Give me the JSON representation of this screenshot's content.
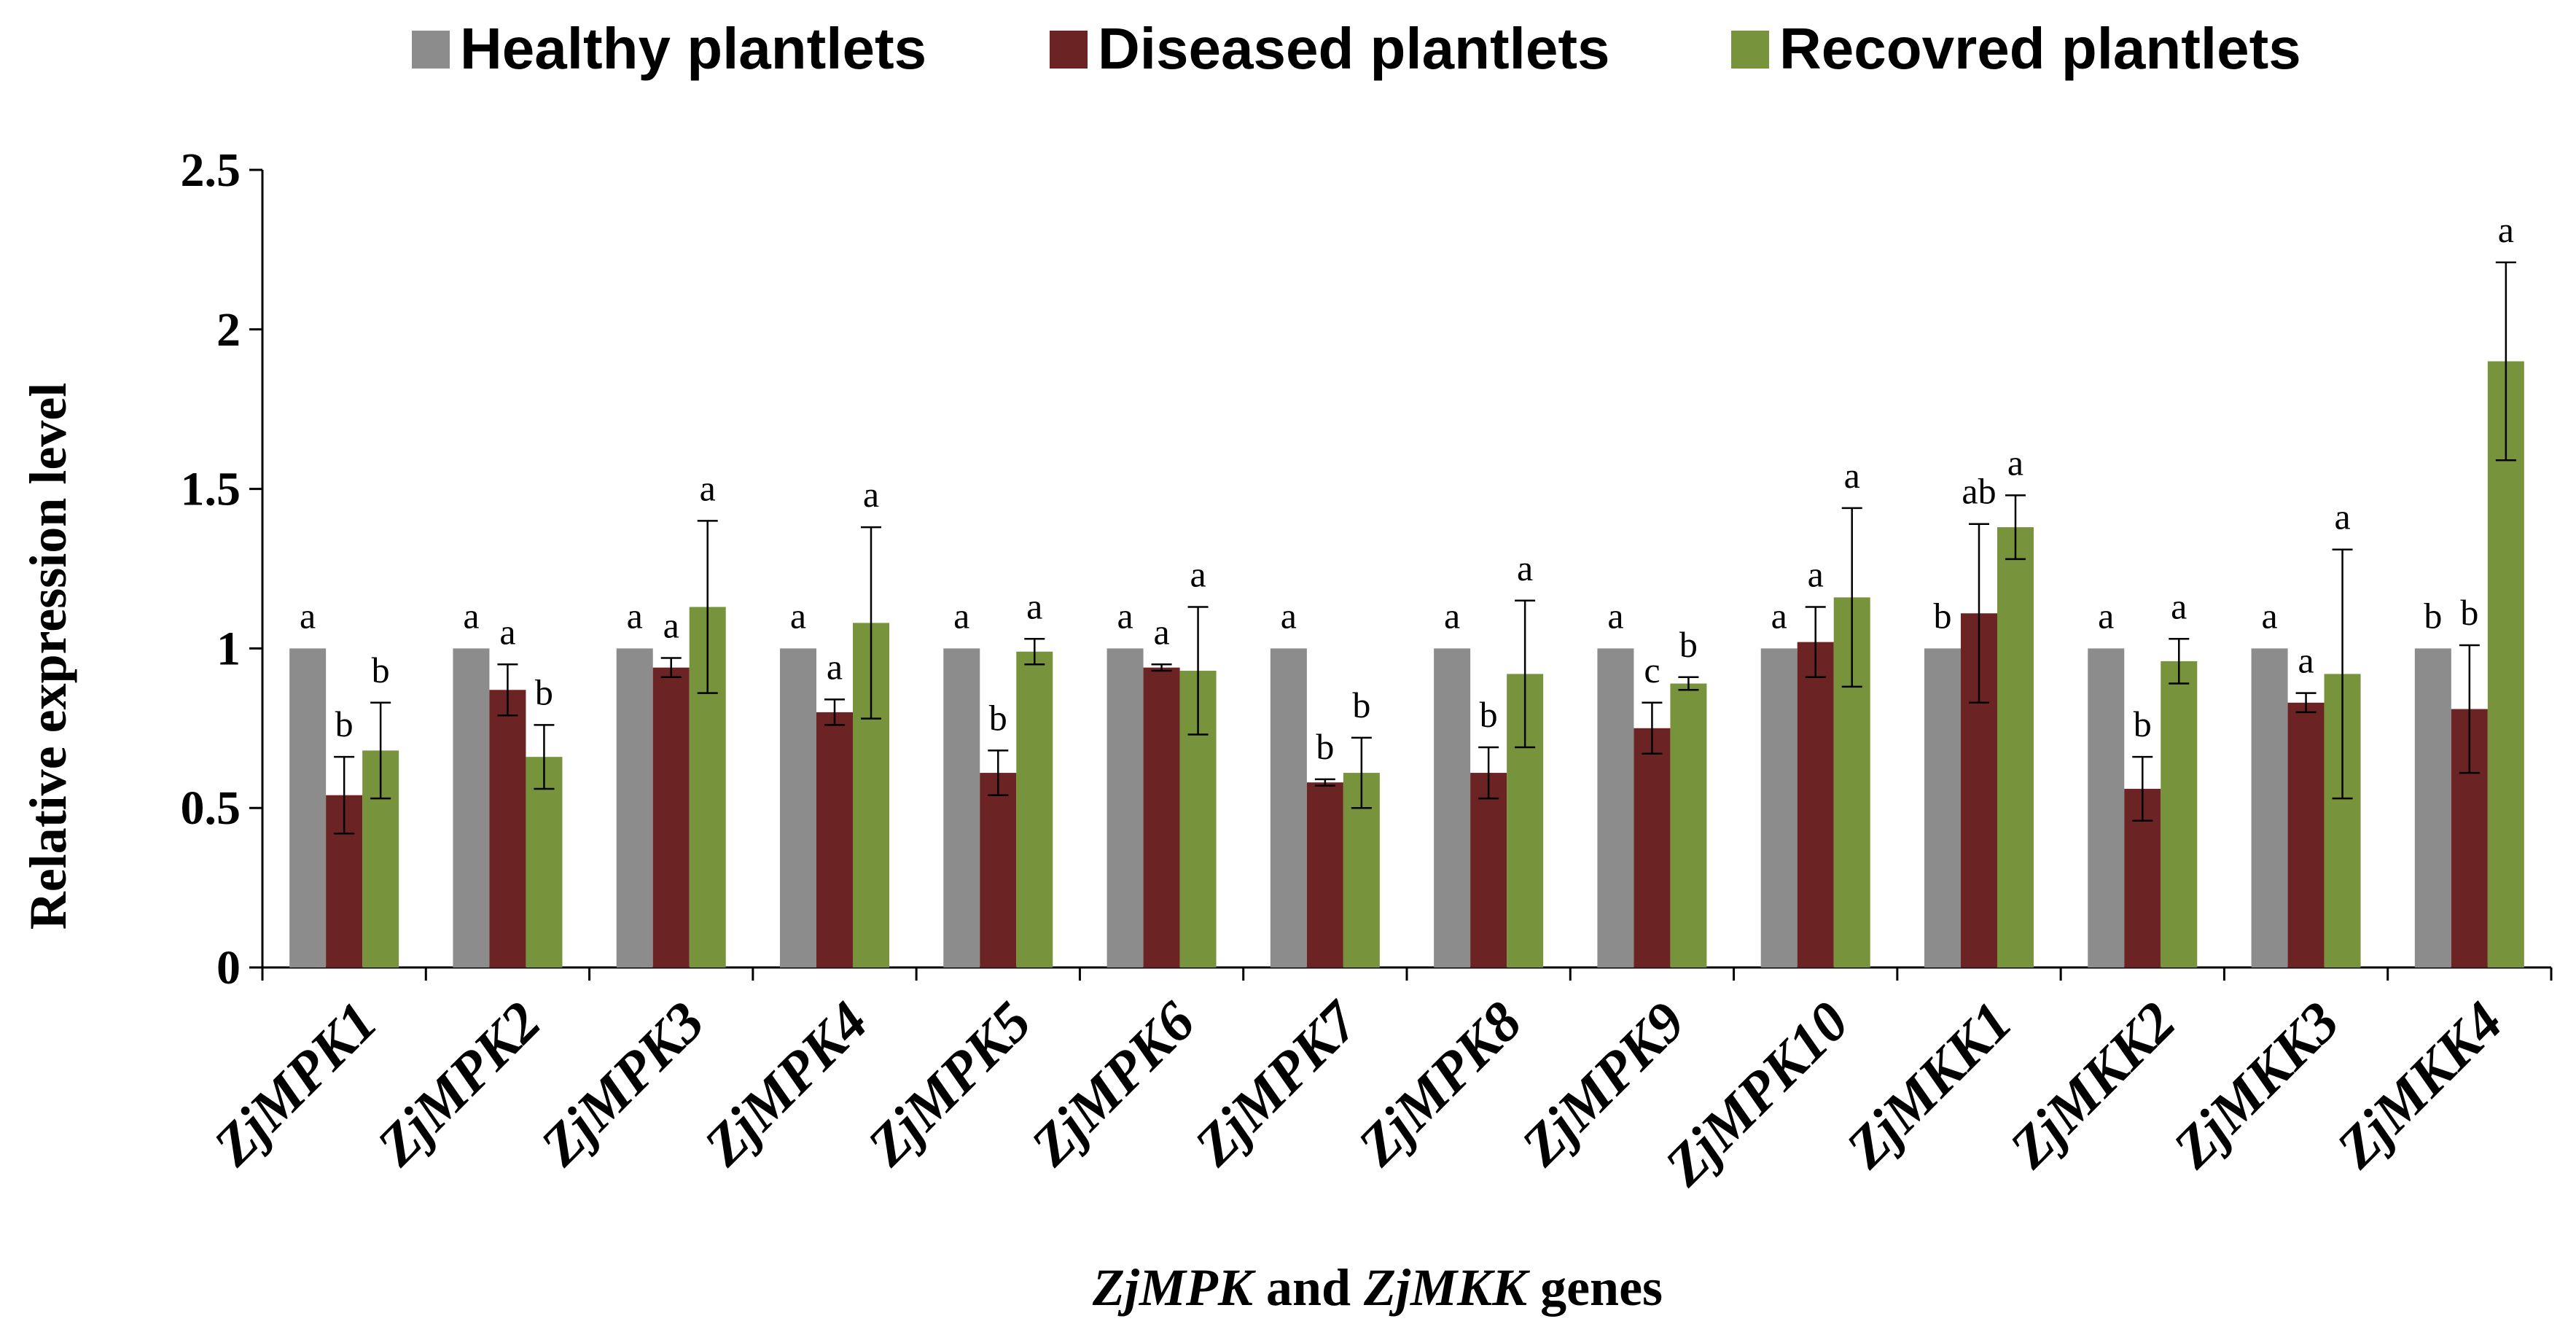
{
  "chart_data": {
    "type": "bar",
    "categories": [
      "ZjMPK1",
      "ZjMPK2",
      "ZjMPK3",
      "ZjMPK4",
      "ZjMPK5",
      "ZjMPK6",
      "ZjMPK7",
      "ZjMPK8",
      "ZjMPK9",
      "ZjMPK10",
      "ZjMKK1",
      "ZjMKK2",
      "ZjMKK3",
      "ZjMKK4"
    ],
    "series": [
      {
        "name": "Healthy plantlets",
        "color": "#8c8c8c",
        "values": [
          1,
          1,
          1,
          1,
          1,
          1,
          1,
          1,
          1,
          1,
          1,
          1,
          1,
          1
        ],
        "errors": [
          0,
          0,
          0,
          0,
          0,
          0,
          0,
          0,
          0,
          0,
          0,
          0,
          0,
          0
        ],
        "letters": [
          "a",
          "a",
          "a",
          "a",
          "a",
          "a",
          "a",
          "a",
          "a",
          "a",
          "b",
          "a",
          "a",
          "b"
        ]
      },
      {
        "name": "Diseased plantlets",
        "color": "#6b2323",
        "values": [
          0.54,
          0.87,
          0.94,
          0.8,
          0.61,
          0.94,
          0.58,
          0.61,
          0.75,
          1.02,
          1.11,
          0.56,
          0.83,
          0.81
        ],
        "errors": [
          0.12,
          0.08,
          0.03,
          0.04,
          0.07,
          0.01,
          0.01,
          0.08,
          0.08,
          0.11,
          0.28,
          0.1,
          0.03,
          0.2
        ],
        "letters": [
          "b",
          "a",
          "a",
          "a",
          "b",
          "a",
          "b",
          "b",
          "c",
          "a",
          "ab",
          "b",
          "a",
          "b"
        ]
      },
      {
        "name": "Recovred plantlets",
        "color": "#77933c",
        "values": [
          0.68,
          0.66,
          1.13,
          1.08,
          0.99,
          0.93,
          0.61,
          0.92,
          0.89,
          1.16,
          1.38,
          0.96,
          0.92,
          1.9
        ],
        "errors": [
          0.15,
          0.1,
          0.27,
          0.3,
          0.04,
          0.2,
          0.11,
          0.23,
          0.02,
          0.28,
          0.1,
          0.07,
          0.39,
          0.31
        ],
        "letters": [
          "b",
          "b",
          "a",
          "a",
          "a",
          "a",
          "b",
          "a",
          "b",
          "a",
          "a",
          "a",
          "a",
          "a"
        ]
      }
    ],
    "yticks": [
      "0",
      "0.5",
      "1",
      "1.5",
      "2",
      "2.5"
    ],
    "ylim": [
      0,
      2.5
    ],
    "ylabel": "Relative expression level",
    "xlabel_parts": [
      {
        "text": "ZjMPK",
        "italic": true
      },
      {
        "text": " and ",
        "italic": false
      },
      {
        "text": "ZjMKK",
        "italic": true
      },
      {
        "text": " genes",
        "italic": false
      }
    ],
    "legend_position": "top-center",
    "grid": false
  }
}
